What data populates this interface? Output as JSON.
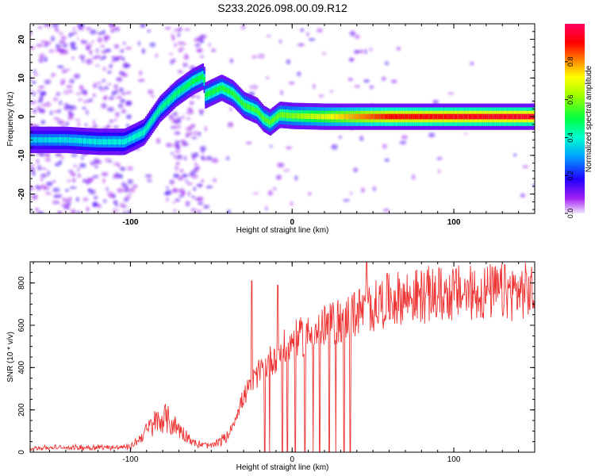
{
  "title": "S233.2026.098.00.09.R12",
  "chart_data": [
    {
      "type": "heatmap",
      "xlabel": "Height of straight line (km)",
      "ylabel": "Frequency (Hz)",
      "xlim": [
        -162,
        150
      ],
      "ylim": [
        -25,
        24
      ],
      "x_ticks": [
        -100,
        0,
        100
      ],
      "y_ticks": [
        -20,
        -10,
        0,
        10,
        20
      ],
      "colorbar": {
        "label": "Normalized spectral amplitude",
        "range": [
          0,
          1
        ],
        "ticks": [
          "0.0",
          "0.2",
          "0.4",
          "0.6",
          "0.8"
        ]
      },
      "ridge": [
        {
          "x": -162,
          "y": -6
        },
        {
          "x": -140,
          "y": -6
        },
        {
          "x": -120,
          "y": -6.5
        },
        {
          "x": -104,
          "y": -6.5
        },
        {
          "x": -92,
          "y": -4
        },
        {
          "x": -82,
          "y": 2
        },
        {
          "x": -72,
          "y": 6
        },
        {
          "x": -62,
          "y": 9
        },
        {
          "x": -55,
          "y": 10.5
        },
        {
          "x": -54,
          "y": 5.5
        },
        {
          "x": -44,
          "y": 7.5
        },
        {
          "x": -37,
          "y": 6
        },
        {
          "x": -30,
          "y": 3
        },
        {
          "x": -22,
          "y": 1.5
        },
        {
          "x": -18,
          "y": -0.5
        },
        {
          "x": -14,
          "y": -1.5
        },
        {
          "x": -8,
          "y": 0.5
        },
        {
          "x": 0,
          "y": 0.2
        },
        {
          "x": 20,
          "y": 0
        },
        {
          "x": 60,
          "y": 0
        },
        {
          "x": 150,
          "y": 0
        }
      ],
      "ridge_amplitude": [
        {
          "x": -162,
          "a": 0.35
        },
        {
          "x": -100,
          "a": 0.4
        },
        {
          "x": -60,
          "a": 0.5
        },
        {
          "x": -20,
          "a": 0.55
        },
        {
          "x": 0,
          "a": 0.6
        },
        {
          "x": 30,
          "a": 0.75
        },
        {
          "x": 60,
          "a": 0.9
        },
        {
          "x": 150,
          "a": 0.95
        }
      ]
    },
    {
      "type": "line",
      "xlabel": "Height of straight line (km)",
      "ylabel": "SNR (10 * v/v)",
      "xlim": [
        -162,
        150
      ],
      "ylim": [
        0,
        900
      ],
      "x_ticks": [
        -100,
        0,
        100
      ],
      "y_ticks": [
        0,
        200,
        400,
        600,
        800
      ],
      "series": [
        {
          "color": "#ee3333",
          "trend": [
            {
              "x": -162,
              "y": 20
            },
            {
              "x": -100,
              "y": 25
            },
            {
              "x": -95,
              "y": 60
            },
            {
              "x": -85,
              "y": 140
            },
            {
              "x": -78,
              "y": 160
            },
            {
              "x": -70,
              "y": 110
            },
            {
              "x": -60,
              "y": 40
            },
            {
              "x": -50,
              "y": 30
            },
            {
              "x": -40,
              "y": 70
            },
            {
              "x": -30,
              "y": 260
            },
            {
              "x": -20,
              "y": 380
            },
            {
              "x": -10,
              "y": 460
            },
            {
              "x": 0,
              "y": 520
            },
            {
              "x": 20,
              "y": 590
            },
            {
              "x": 40,
              "y": 660
            },
            {
              "x": 60,
              "y": 720
            },
            {
              "x": 80,
              "y": 740
            },
            {
              "x": 100,
              "y": 750
            },
            {
              "x": 150,
              "y": 760
            }
          ],
          "dropouts_x": [
            -17,
            -14,
            -6,
            -3,
            2,
            8,
            13,
            17,
            23,
            27,
            32,
            36
          ],
          "spikes": [
            {
              "x": -25,
              "y": 810
            },
            {
              "x": -9,
              "y": 790
            },
            {
              "x": 46,
              "y": 900
            }
          ]
        }
      ]
    }
  ]
}
